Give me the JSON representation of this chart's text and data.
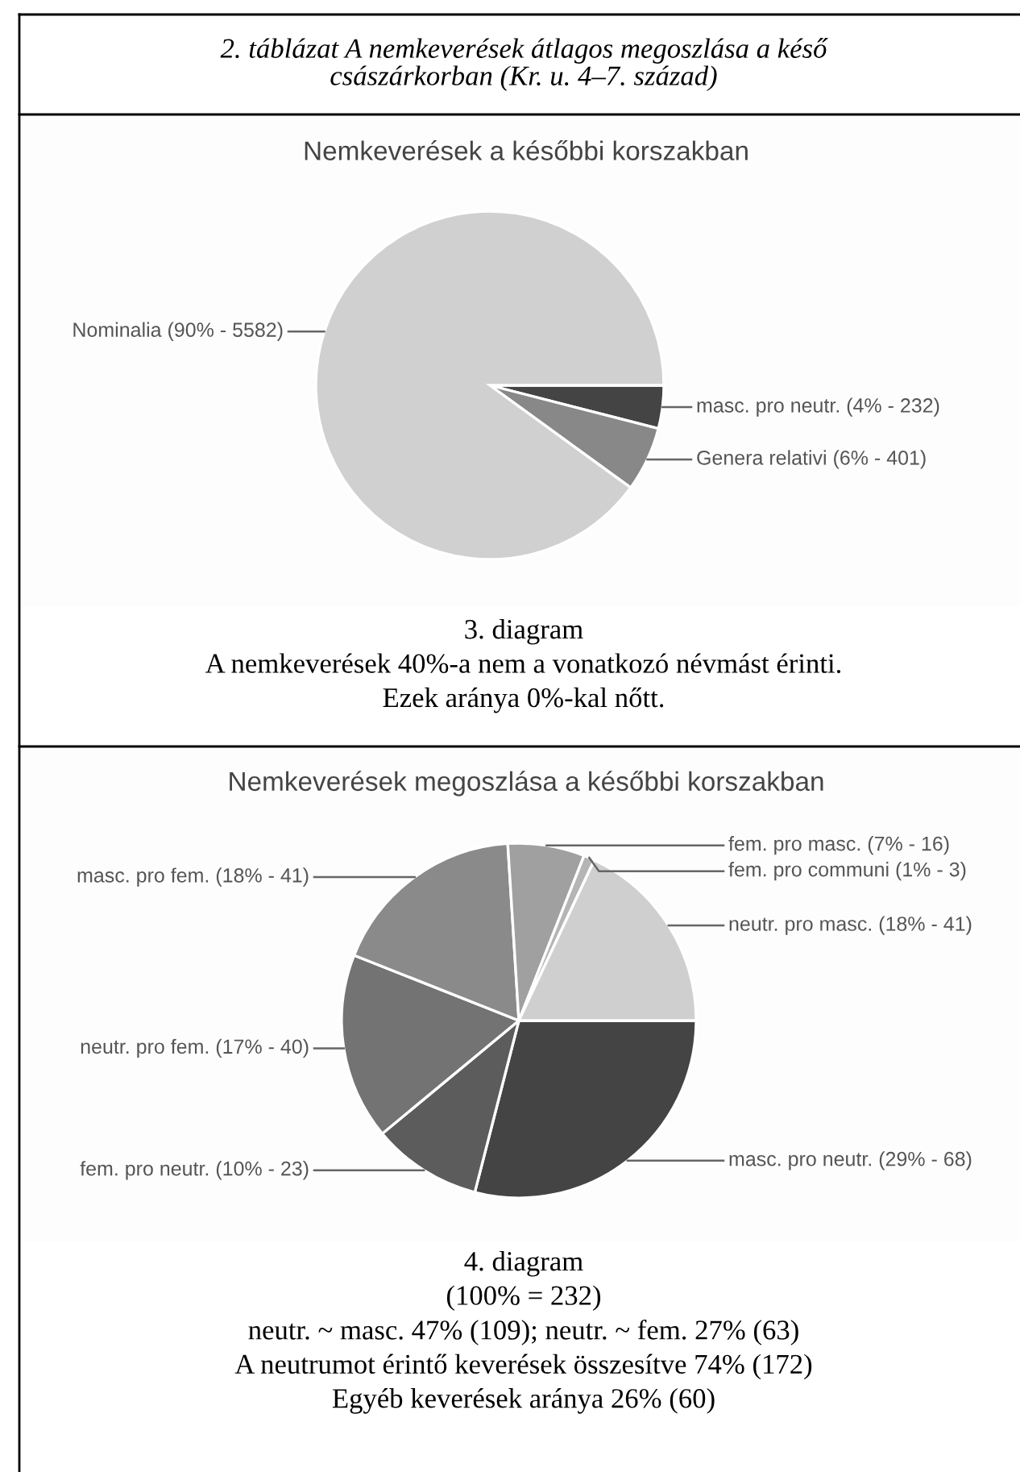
{
  "chart_data": [
    {
      "type": "pie",
      "title": "Nemkeverések a későbbi korszakban",
      "categories": [
        "masc. pro neutr. (4% - 232)",
        "Genera relativi (6% - 401)",
        "Nominalia (90% - 5582)"
      ],
      "values": [
        4,
        6,
        90
      ],
      "colors": [
        "#444444",
        "#888888",
        "#d0d0d0"
      ],
      "annotations": [
        "2. táblázat A nemkeverések átlagos megoszlása a késő\ncsászárkorban (Kr. u. 4–7. század)",
        "3. diagram\nA nemkeverések 40%-a nem a vonatkozó névmást érinti.\nEzek aránya 0%-kal nőtt."
      ]
    },
    {
      "type": "pie",
      "title": "Nemkeverések megoszlása a későbbi korszakban",
      "categories": [
        "masc. pro neutr. (29% - 68)",
        "fem. pro neutr. (10% - 23)",
        "neutr. pro fem. (17% - 40)",
        "masc. pro fem. (18% - 41)",
        "fem. pro masc. (7% - 16)",
        "fem. pro communi (1% - 3)",
        "neutr. pro masc. (18% - 41)"
      ],
      "values": [
        29,
        10,
        17,
        18,
        7,
        1,
        18
      ],
      "colors": [
        "#444444",
        "#5c5c5c",
        "#737373",
        "#8a8a8a",
        "#a0a0a0",
        "#b5b5b5",
        "#cfcfcf"
      ],
      "annotations": [
        "4. diagram\n(100% = 232)\nneutr. ~ masc. 47% (109); neutr. ~ fem. 27% (63)\nA neutrumot érintő keverések összesítve 74% (172)\nEgyéb keverések aránya 26% (60)"
      ]
    }
  ]
}
